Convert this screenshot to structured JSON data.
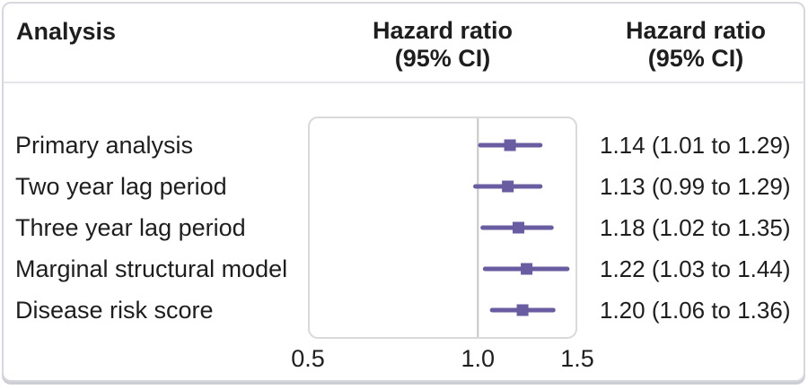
{
  "header": {
    "analysis": "Analysis",
    "hazard_ratio_line1": "Hazard ratio",
    "hazard_ratio_line2": "(95% CI)"
  },
  "chart_data": {
    "type": "forest",
    "scale": "log",
    "axis": {
      "xlim": [
        0.5,
        1.5
      ],
      "ticks": [
        0.5,
        1.0,
        1.5
      ],
      "tick_labels": [
        "0.5",
        "1.0",
        "1.5"
      ],
      "reference_line": 1.0
    },
    "rows": [
      {
        "label": "Primary analysis",
        "estimate": 1.14,
        "ci_low": 1.01,
        "ci_high": 1.29,
        "text": "1.14 (1.01 to 1.29)"
      },
      {
        "label": "Two year lag period",
        "estimate": 1.13,
        "ci_low": 0.99,
        "ci_high": 1.29,
        "text": "1.13 (0.99 to 1.29)"
      },
      {
        "label": "Three year lag period",
        "estimate": 1.18,
        "ci_low": 1.02,
        "ci_high": 1.35,
        "text": "1.18 (1.02 to 1.35)"
      },
      {
        "label": "Marginal structural model",
        "estimate": 1.22,
        "ci_low": 1.03,
        "ci_high": 1.44,
        "text": "1.22 (1.03 to 1.44)"
      },
      {
        "label": "Disease risk score",
        "estimate": 1.2,
        "ci_low": 1.06,
        "ci_high": 1.36,
        "text": "1.20 (1.06 to 1.36)"
      }
    ]
  },
  "colors": {
    "marker": "#695CA1",
    "reference_line": "#C6C6C6",
    "plot_border": "#D9D9D9",
    "divider": "#E4E4EB",
    "card_border": "#D7D7DE",
    "text": "#1E1E1E"
  }
}
